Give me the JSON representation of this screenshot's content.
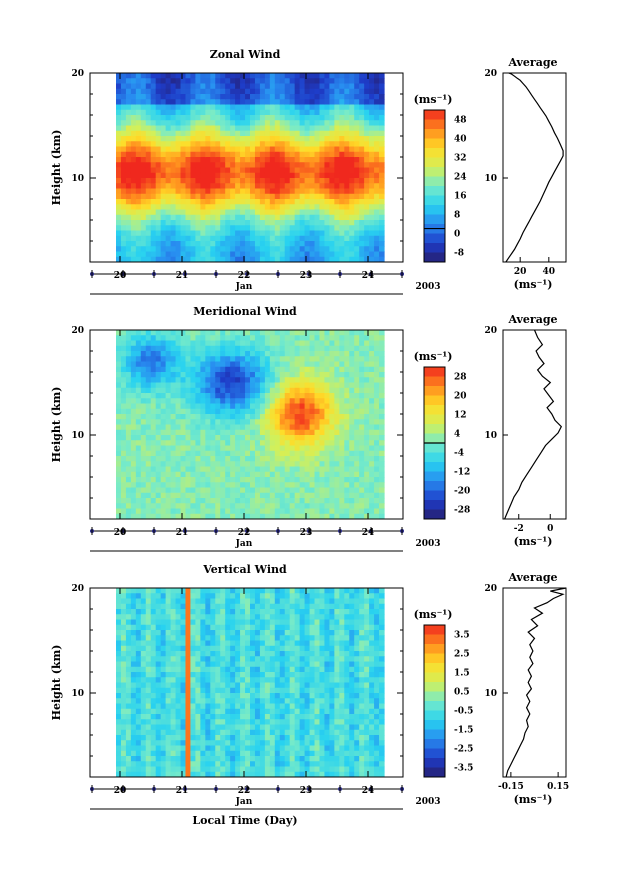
{
  "figure": {
    "bottom_label": "Local Time (Day)",
    "month_label": "Jan",
    "year_label": "2003"
  },
  "panels": [
    {
      "id": "zonal",
      "title": "Zonal Wind",
      "ylabel": "Height (km)",
      "cbar_unit": "(ms⁻¹)",
      "cbar_ticks": [
        "48",
        "40",
        "32",
        "24",
        "16",
        "8",
        "0",
        "-8"
      ],
      "avg_title": "Average",
      "avg_xticks": [
        "20",
        "40"
      ],
      "avg_xlabel": "(ms⁻¹)"
    },
    {
      "id": "meridional",
      "title": "Meridional Wind",
      "ylabel": "Height (km)",
      "cbar_unit": "(ms⁻¹)",
      "cbar_ticks": [
        "28",
        "20",
        "12",
        "4",
        "-4",
        "-12",
        "-20",
        "-28"
      ],
      "avg_title": "Average",
      "avg_xticks": [
        "-2",
        "0"
      ],
      "avg_xlabel": "(ms⁻¹)"
    },
    {
      "id": "vertical",
      "title": "Vertical Wind",
      "ylabel": "Height (km)",
      "cbar_unit": "(ms⁻¹)",
      "cbar_ticks": [
        "3.5",
        "2.5",
        "1.5",
        "0.5",
        "-0.5",
        "-1.5",
        "-2.5",
        "-3.5"
      ],
      "avg_title": "Average",
      "avg_xticks": [
        "-0.15",
        "0.15"
      ],
      "avg_xlabel": "(ms⁻¹)"
    }
  ],
  "chart_data": [
    {
      "type": "heatmap",
      "title": "Zonal Wind",
      "ylabel": "Height (km)",
      "xlabel": "Local Time (Day)",
      "x_ticks": [
        "20",
        "21",
        "22",
        "23",
        "24"
      ],
      "y_ticks": [
        "10",
        "20"
      ],
      "ylim": [
        2,
        20
      ],
      "colorbar": {
        "unit": "ms⁻¹",
        "ticks": [
          48,
          40,
          32,
          24,
          16,
          8,
          0,
          -8
        ],
        "range": [
          -12,
          52
        ]
      },
      "profile": {
        "title": "Average",
        "x_ticks": [
          20,
          40
        ],
        "xlim": [
          8,
          52
        ],
        "x": [
          10,
          12,
          14,
          16,
          18,
          20,
          22,
          24,
          26,
          28,
          30,
          32,
          34,
          36,
          38,
          40,
          42,
          44,
          46,
          48,
          50,
          50,
          48,
          46,
          44,
          42,
          40,
          38,
          36,
          34,
          32,
          30,
          28,
          26,
          24,
          22,
          20,
          18,
          16,
          14,
          12
        ],
        "height_km": [
          2,
          2.4,
          2.8,
          3.2,
          3.7,
          4.2,
          4.8,
          5.3,
          5.8,
          6.3,
          6.8,
          7.3,
          7.8,
          8.4,
          9.0,
          9.6,
          10.1,
          10.6,
          11.1,
          11.6,
          12.1,
          12.6,
          13.2,
          13.8,
          14.3,
          14.9,
          15.4,
          15.9,
          16.3,
          16.7,
          17.1,
          17.5,
          17.9,
          18.3,
          18.7,
          19.0,
          19.3,
          19.5,
          19.7,
          19.9,
          20
        ]
      }
    },
    {
      "type": "heatmap",
      "title": "Meridional Wind",
      "ylabel": "Height (km)",
      "xlabel": "Local Time (Day)",
      "x_ticks": [
        "20",
        "21",
        "22",
        "23",
        "24"
      ],
      "y_ticks": [
        "10",
        "20"
      ],
      "ylim": [
        2,
        20
      ],
      "colorbar": {
        "unit": "ms⁻¹",
        "ticks": [
          28,
          20,
          12,
          4,
          -4,
          -12,
          -20,
          -28
        ],
        "range": [
          -32,
          32
        ]
      },
      "profile": {
        "title": "Average",
        "x_ticks": [
          -2,
          0
        ],
        "xlim": [
          -3,
          1
        ],
        "x": [
          -2.9,
          -2.7,
          -2.5,
          -2.3,
          -2.0,
          -1.8,
          -1.5,
          -1.2,
          -0.9,
          -0.6,
          -0.3,
          0.1,
          0.5,
          0.7,
          0.3,
          0.1,
          -0.2,
          0.2,
          -0.1,
          -0.4,
          0.0,
          -0.5,
          -0.8,
          -0.4,
          -0.7,
          -0.9,
          -0.5,
          -0.8,
          -1.0
        ],
        "height_km": [
          2,
          2.7,
          3.4,
          4.1,
          4.8,
          5.5,
          6.2,
          6.9,
          7.6,
          8.3,
          9.0,
          9.6,
          10.2,
          10.8,
          11.4,
          12.0,
          12.6,
          13.2,
          13.8,
          14.4,
          15.0,
          15.6,
          16.2,
          16.8,
          17.4,
          18.0,
          18.6,
          19.3,
          20
        ]
      }
    },
    {
      "type": "heatmap",
      "title": "Vertical Wind",
      "ylabel": "Height (km)",
      "xlabel": "Local Time (Day)",
      "x_ticks": [
        "20",
        "21",
        "22",
        "23",
        "24"
      ],
      "y_ticks": [
        "10",
        "20"
      ],
      "ylim": [
        2,
        20
      ],
      "colorbar": {
        "unit": "ms⁻¹",
        "ticks": [
          3.5,
          2.5,
          1.5,
          0.5,
          -0.5,
          -1.5,
          -2.5,
          -3.5
        ],
        "range": [
          -4,
          4
        ]
      },
      "profile": {
        "title": "Average",
        "x_ticks": [
          -0.15,
          0.15
        ],
        "xlim": [
          -0.2,
          0.2
        ],
        "x": [
          -0.18,
          -0.17,
          -0.15,
          -0.13,
          -0.11,
          -0.09,
          -0.07,
          -0.06,
          -0.04,
          -0.05,
          -0.03,
          -0.05,
          -0.03,
          -0.05,
          -0.02,
          -0.04,
          -0.02,
          -0.04,
          -0.01,
          -0.03,
          -0.01,
          -0.03,
          0.0,
          -0.04,
          0.02,
          -0.02,
          0.05,
          0.0,
          0.08,
          0.12,
          0.18,
          0.1,
          0.2
        ],
        "height_km": [
          2,
          2.6,
          3.2,
          3.8,
          4.4,
          5.0,
          5.6,
          6.2,
          6.8,
          7.4,
          8.0,
          8.6,
          9.2,
          9.8,
          10.4,
          11.0,
          11.6,
          12.2,
          12.8,
          13.4,
          14.0,
          14.6,
          15.2,
          15.8,
          16.4,
          17.0,
          17.6,
          18.1,
          18.6,
          19.0,
          19.4,
          19.7,
          20
        ]
      }
    }
  ]
}
